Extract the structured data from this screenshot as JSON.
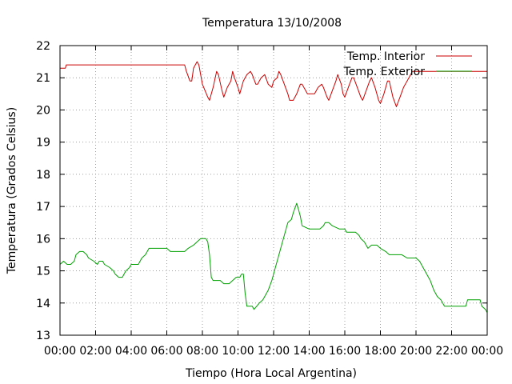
{
  "chart_data": {
    "type": "line",
    "title": "Temperatura 13/10/2008",
    "xlabel": "Tiempo (Hora Local Argentina)",
    "ylabel": "Temperatura (Grados Celsius)",
    "xlim": [
      0,
      24
    ],
    "ylim": [
      13,
      22
    ],
    "x_ticks": [
      0,
      2,
      4,
      6,
      8,
      10,
      12,
      14,
      16,
      18,
      20,
      22,
      24
    ],
    "x_tick_labels": [
      "00:00",
      "02:00",
      "04:00",
      "06:00",
      "08:00",
      "10:00",
      "12:00",
      "14:00",
      "16:00",
      "18:00",
      "20:00",
      "22:00",
      "00:00"
    ],
    "y_ticks": [
      13,
      14,
      15,
      16,
      17,
      18,
      19,
      20,
      21,
      22
    ],
    "y_tick_labels": [
      "13",
      "14",
      "15",
      "16",
      "17",
      "18",
      "19",
      "20",
      "21",
      "22"
    ],
    "grid": true,
    "legend_position": "top-right",
    "series": [
      {
        "name": "Temp. Interior",
        "color": "#cc0000",
        "points": [
          [
            0.0,
            21.3
          ],
          [
            0.3,
            21.3
          ],
          [
            0.35,
            21.4
          ],
          [
            1.0,
            21.4
          ],
          [
            3.0,
            21.4
          ],
          [
            5.0,
            21.4
          ],
          [
            7.0,
            21.4
          ],
          [
            7.1,
            21.2
          ],
          [
            7.3,
            20.9
          ],
          [
            7.4,
            20.9
          ],
          [
            7.5,
            21.3
          ],
          [
            7.7,
            21.5
          ],
          [
            7.8,
            21.4
          ],
          [
            8.0,
            20.8
          ],
          [
            8.3,
            20.4
          ],
          [
            8.4,
            20.3
          ],
          [
            8.6,
            20.7
          ],
          [
            8.8,
            21.2
          ],
          [
            8.9,
            21.1
          ],
          [
            9.1,
            20.6
          ],
          [
            9.2,
            20.4
          ],
          [
            9.4,
            20.7
          ],
          [
            9.6,
            20.9
          ],
          [
            9.7,
            21.2
          ],
          [
            9.8,
            21.0
          ],
          [
            10.0,
            20.7
          ],
          [
            10.1,
            20.5
          ],
          [
            10.3,
            20.9
          ],
          [
            10.5,
            21.1
          ],
          [
            10.7,
            21.2
          ],
          [
            10.8,
            21.1
          ],
          [
            11.0,
            20.8
          ],
          [
            11.1,
            20.8
          ],
          [
            11.3,
            21.0
          ],
          [
            11.5,
            21.1
          ],
          [
            11.7,
            20.8
          ],
          [
            11.9,
            20.7
          ],
          [
            12.0,
            20.9
          ],
          [
            12.2,
            21.0
          ],
          [
            12.3,
            21.2
          ],
          [
            12.4,
            21.1
          ],
          [
            12.6,
            20.8
          ],
          [
            12.8,
            20.5
          ],
          [
            12.9,
            20.3
          ],
          [
            13.1,
            20.3
          ],
          [
            13.3,
            20.5
          ],
          [
            13.5,
            20.8
          ],
          [
            13.6,
            20.8
          ],
          [
            13.8,
            20.6
          ],
          [
            13.9,
            20.5
          ],
          [
            14.3,
            20.5
          ],
          [
            14.5,
            20.7
          ],
          [
            14.7,
            20.8
          ],
          [
            14.8,
            20.7
          ],
          [
            15.0,
            20.4
          ],
          [
            15.1,
            20.3
          ],
          [
            15.3,
            20.6
          ],
          [
            15.5,
            20.9
          ],
          [
            15.6,
            21.1
          ],
          [
            15.8,
            20.8
          ],
          [
            15.9,
            20.5
          ],
          [
            16.0,
            20.4
          ],
          [
            16.2,
            20.7
          ],
          [
            16.4,
            21.0
          ],
          [
            16.5,
            21.0
          ],
          [
            16.7,
            20.7
          ],
          [
            16.9,
            20.4
          ],
          [
            17.0,
            20.3
          ],
          [
            17.2,
            20.6
          ],
          [
            17.4,
            20.9
          ],
          [
            17.5,
            21.0
          ],
          [
            17.7,
            20.7
          ],
          [
            17.9,
            20.3
          ],
          [
            18.0,
            20.2
          ],
          [
            18.2,
            20.5
          ],
          [
            18.4,
            20.9
          ],
          [
            18.5,
            20.9
          ],
          [
            18.7,
            20.4
          ],
          [
            18.9,
            20.1
          ],
          [
            19.1,
            20.4
          ],
          [
            19.3,
            20.7
          ],
          [
            19.5,
            20.9
          ],
          [
            19.7,
            21.1
          ],
          [
            19.8,
            21.2
          ],
          [
            21.0,
            21.2
          ],
          [
            22.0,
            21.2
          ],
          [
            24.0,
            21.2
          ]
        ]
      },
      {
        "name": "Temp. Exterior",
        "color": "#00a000",
        "points": [
          [
            0.0,
            15.2
          ],
          [
            0.2,
            15.3
          ],
          [
            0.4,
            15.2
          ],
          [
            0.6,
            15.2
          ],
          [
            0.8,
            15.3
          ],
          [
            0.9,
            15.5
          ],
          [
            1.1,
            15.6
          ],
          [
            1.3,
            15.6
          ],
          [
            1.5,
            15.5
          ],
          [
            1.6,
            15.4
          ],
          [
            1.9,
            15.3
          ],
          [
            2.1,
            15.2
          ],
          [
            2.2,
            15.3
          ],
          [
            2.4,
            15.3
          ],
          [
            2.5,
            15.2
          ],
          [
            2.8,
            15.1
          ],
          [
            3.0,
            15.0
          ],
          [
            3.1,
            14.9
          ],
          [
            3.3,
            14.8
          ],
          [
            3.5,
            14.8
          ],
          [
            3.7,
            15.0
          ],
          [
            3.9,
            15.1
          ],
          [
            4.0,
            15.2
          ],
          [
            4.4,
            15.2
          ],
          [
            4.6,
            15.4
          ],
          [
            4.8,
            15.5
          ],
          [
            5.0,
            15.7
          ],
          [
            5.5,
            15.7
          ],
          [
            6.0,
            15.7
          ],
          [
            6.2,
            15.6
          ],
          [
            6.8,
            15.6
          ],
          [
            7.0,
            15.6
          ],
          [
            7.2,
            15.7
          ],
          [
            7.5,
            15.8
          ],
          [
            7.7,
            15.9
          ],
          [
            7.9,
            16.0
          ],
          [
            8.2,
            16.0
          ],
          [
            8.3,
            15.9
          ],
          [
            8.4,
            15.5
          ],
          [
            8.5,
            14.8
          ],
          [
            8.6,
            14.7
          ],
          [
            9.0,
            14.7
          ],
          [
            9.2,
            14.6
          ],
          [
            9.5,
            14.6
          ],
          [
            9.7,
            14.7
          ],
          [
            9.9,
            14.8
          ],
          [
            10.1,
            14.8
          ],
          [
            10.2,
            14.9
          ],
          [
            10.3,
            14.9
          ],
          [
            10.4,
            14.3
          ],
          [
            10.5,
            13.9
          ],
          [
            10.8,
            13.9
          ],
          [
            10.9,
            13.8
          ],
          [
            11.2,
            14.0
          ],
          [
            11.4,
            14.1
          ],
          [
            11.7,
            14.4
          ],
          [
            11.9,
            14.7
          ],
          [
            12.1,
            15.1
          ],
          [
            12.3,
            15.5
          ],
          [
            12.5,
            15.9
          ],
          [
            12.7,
            16.3
          ],
          [
            12.8,
            16.5
          ],
          [
            13.0,
            16.6
          ],
          [
            13.1,
            16.8
          ],
          [
            13.3,
            17.1
          ],
          [
            13.4,
            16.9
          ],
          [
            13.5,
            16.7
          ],
          [
            13.6,
            16.4
          ],
          [
            14.0,
            16.3
          ],
          [
            14.6,
            16.3
          ],
          [
            14.8,
            16.4
          ],
          [
            14.9,
            16.5
          ],
          [
            15.1,
            16.5
          ],
          [
            15.3,
            16.4
          ],
          [
            15.7,
            16.3
          ],
          [
            16.0,
            16.3
          ],
          [
            16.1,
            16.2
          ],
          [
            16.6,
            16.2
          ],
          [
            16.8,
            16.1
          ],
          [
            16.9,
            16.0
          ],
          [
            17.1,
            15.9
          ],
          [
            17.3,
            15.7
          ],
          [
            17.5,
            15.8
          ],
          [
            17.8,
            15.8
          ],
          [
            18.0,
            15.7
          ],
          [
            18.3,
            15.6
          ],
          [
            18.5,
            15.5
          ],
          [
            19.2,
            15.5
          ],
          [
            19.5,
            15.4
          ],
          [
            20.0,
            15.4
          ],
          [
            20.2,
            15.3
          ],
          [
            20.4,
            15.1
          ],
          [
            20.6,
            14.9
          ],
          [
            20.8,
            14.7
          ],
          [
            21.0,
            14.4
          ],
          [
            21.2,
            14.2
          ],
          [
            21.4,
            14.1
          ],
          [
            21.6,
            13.9
          ],
          [
            22.0,
            13.9
          ],
          [
            22.8,
            13.9
          ],
          [
            22.9,
            14.1
          ],
          [
            23.6,
            14.1
          ],
          [
            23.7,
            13.9
          ],
          [
            23.9,
            13.8
          ],
          [
            24.0,
            13.7
          ]
        ]
      }
    ]
  }
}
